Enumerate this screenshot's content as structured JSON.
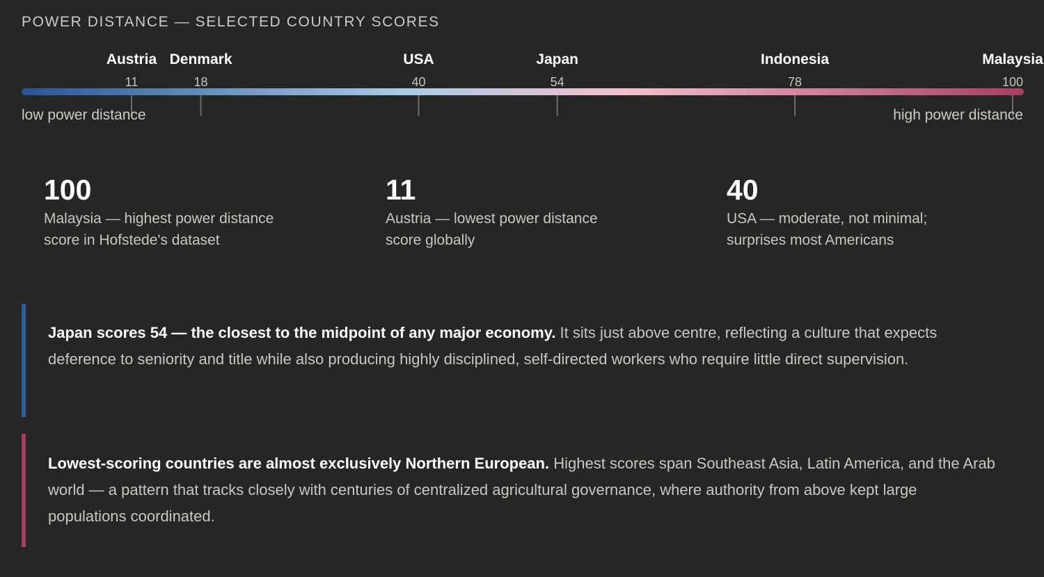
{
  "heading": "POWER DISTANCE — SELECTED COUNTRY SCORES",
  "scale": {
    "low_label": "low power distance",
    "high_label": "high power distance",
    "gradient_colors": [
      "#2b5493",
      "#a9cbe8",
      "#f4c0cd",
      "#a63e62"
    ]
  },
  "chart_data": {
    "type": "scatter",
    "title": "POWER DISTANCE — SELECTED COUNTRY SCORES",
    "xlim": [
      11,
      100
    ],
    "points": [
      {
        "label": "Austria",
        "value": 11
      },
      {
        "label": "Denmark",
        "value": 18
      },
      {
        "label": "USA",
        "value": 40
      },
      {
        "label": "Japan",
        "value": 54
      },
      {
        "label": "Indonesia",
        "value": 78
      },
      {
        "label": "Malaysia",
        "value": 100
      }
    ]
  },
  "stats": [
    {
      "value": "100",
      "desc_line1": "Malaysia — highest power distance",
      "desc_line2": "score in Hofstede's dataset"
    },
    {
      "value": "11",
      "desc_line1": "Austria — lowest power distance",
      "desc_line2": "score globally"
    },
    {
      "value": "40",
      "desc_line1": "USA — moderate, not minimal;",
      "desc_line2": "surprises most Americans"
    }
  ],
  "callouts": [
    {
      "strong": "Japan scores 54 — the closest to the midpoint of any major economy.",
      "body": " It sits just above centre, reflecting a culture that expects deference to seniority and title while also producing highly disciplined, self-directed workers who require little direct supervision.",
      "accent": "#2e5d9c"
    },
    {
      "strong": "Lowest-scoring countries are almost exclusively Northern European.",
      "body": " Highest scores span Southeast Asia, Latin America, and the Arab world — a pattern that tracks closely with centuries of centralized agricultural governance, where authority from above kept large populations coordinated.",
      "accent": "#a63e62"
    }
  ]
}
